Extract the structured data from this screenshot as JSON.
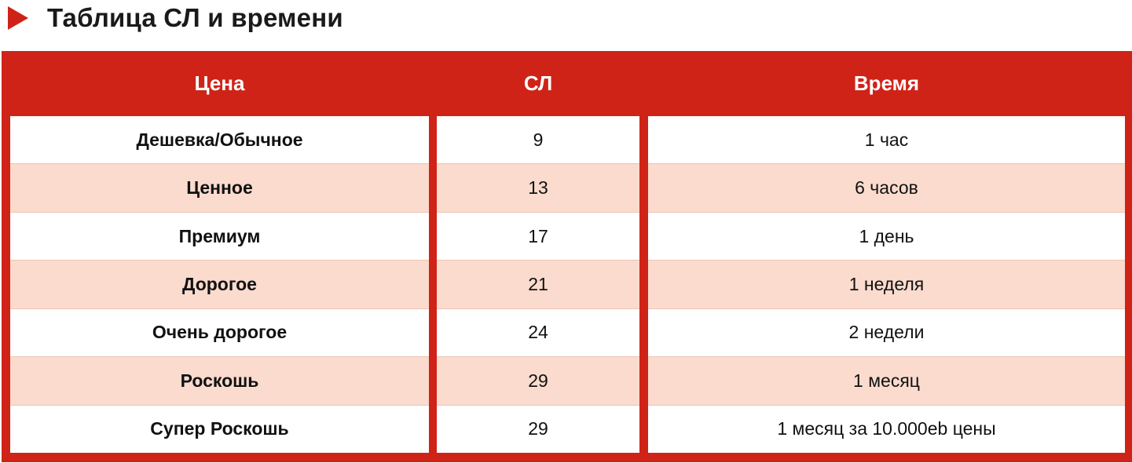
{
  "heading": {
    "title": "Таблица СЛ и времени"
  },
  "colors": {
    "accent": "#cf2318",
    "row_alt": "#fadbcd",
    "row": "#ffffff"
  },
  "icons": {
    "heading_marker": "play-triangle-icon"
  },
  "table": {
    "headers": [
      "Цена",
      "СЛ",
      "Время"
    ],
    "rows": [
      [
        "Дешевка/Обычное",
        "9",
        "1 час"
      ],
      [
        "Ценное",
        "13",
        "6 часов"
      ],
      [
        "Премиум",
        "17",
        "1 день"
      ],
      [
        "Дорогое",
        "21",
        "1 неделя"
      ],
      [
        "Очень дорогое",
        "24",
        "2 недели"
      ],
      [
        "Роскошь",
        "29",
        "1 месяц"
      ],
      [
        "Супер Роскошь",
        "29",
        "1 месяц за 10.000eb цены"
      ]
    ]
  }
}
